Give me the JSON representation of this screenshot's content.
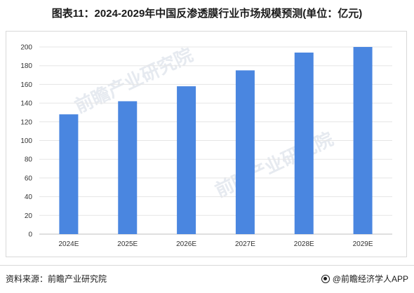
{
  "chart_data": {
    "type": "bar",
    "title": "图表11：2024-2029年中国反渗透膜行业市场规模预测(单位：亿元)",
    "categories": [
      "2024E",
      "2025E",
      "2026E",
      "2027E",
      "2028E",
      "2029E"
    ],
    "values": [
      128,
      142,
      158,
      175,
      194,
      200
    ],
    "ylim": [
      0,
      200
    ],
    "yticks": [
      0,
      20,
      40,
      60,
      80,
      100,
      120,
      140,
      160,
      180,
      200
    ],
    "bar_color": "#4a86e0",
    "grid": true,
    "legend": "none"
  },
  "watermark": {
    "text": "前瞻产业研究院"
  },
  "footer": {
    "source": "资料来源：前瞻产业研究院",
    "brand": "@前瞻经济学人APP"
  }
}
